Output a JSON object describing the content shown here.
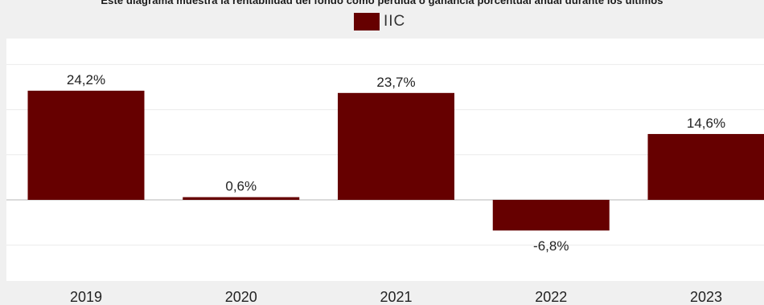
{
  "chart_data": {
    "type": "bar",
    "title": "Este diagrama muestra la rentabilidad del fondo como pérdida o ganancia porcentual anual durante los últimos",
    "categories": [
      "2019",
      "2020",
      "2021",
      "2022",
      "2023"
    ],
    "series": [
      {
        "name": "IIC",
        "values": [
          24.2,
          0.6,
          23.7,
          -6.8,
          14.6
        ],
        "labels": [
          "24,2%",
          "0,6%",
          "23,7%",
          "-6,8%",
          "14,6%"
        ]
      }
    ],
    "ylim": [
      -18,
      35
    ],
    "grid": true,
    "legend_position": "top-center",
    "colors": {
      "bar": "#660000",
      "plot_background": "#ffffff",
      "page_background": "#f0f0f0",
      "gridline": "#ebebeb",
      "zero_line": "#b4b4b4"
    }
  }
}
